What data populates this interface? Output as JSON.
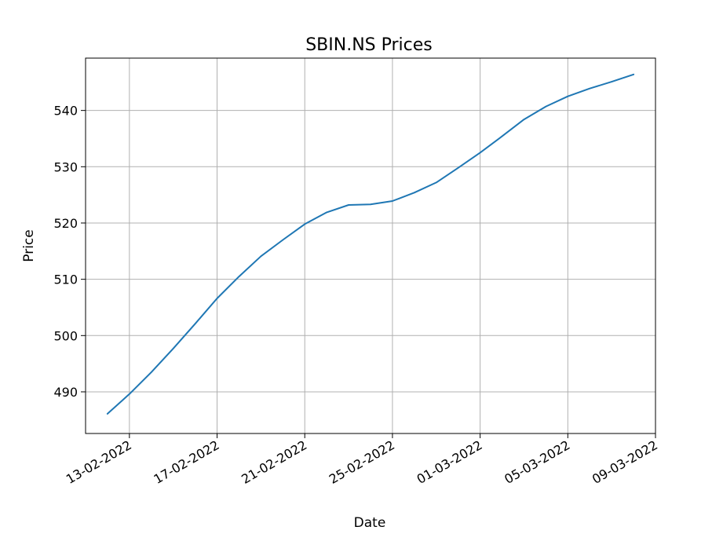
{
  "chart_data": {
    "type": "line",
    "title": "SBIN.NS Prices",
    "xlabel": "Date",
    "ylabel": "Price",
    "grid": true,
    "x_ticks": [
      "13-02-2022",
      "17-02-2022",
      "21-02-2022",
      "25-02-2022",
      "01-03-2022",
      "05-03-2022",
      "09-03-2022"
    ],
    "y_ticks": [
      490,
      500,
      510,
      520,
      530,
      540
    ],
    "xlim": [
      "2022-02-11",
      "2022-03-09"
    ],
    "ylim": [
      482.6,
      549.3
    ],
    "series": [
      {
        "color": "#1f77b4",
        "x": [
          "2022-02-12",
          "2022-02-13",
          "2022-02-14",
          "2022-02-15",
          "2022-02-16",
          "2022-02-17",
          "2022-02-18",
          "2022-02-19",
          "2022-02-20",
          "2022-02-21",
          "2022-02-22",
          "2022-02-23",
          "2022-02-24",
          "2022-02-25",
          "2022-02-26",
          "2022-02-27",
          "2022-02-28",
          "2022-03-01",
          "2022-03-02",
          "2022-03-03",
          "2022-03-04",
          "2022-03-05",
          "2022-03-06",
          "2022-03-07",
          "2022-03-08"
        ],
        "values": [
          486.1,
          489.6,
          493.5,
          497.7,
          502.1,
          506.6,
          510.5,
          514.1,
          517.0,
          519.8,
          521.9,
          523.2,
          523.3,
          523.9,
          525.4,
          527.2,
          529.8,
          532.5,
          535.4,
          538.4,
          540.7,
          542.5,
          543.9,
          545.1,
          546.4
        ]
      }
    ]
  }
}
